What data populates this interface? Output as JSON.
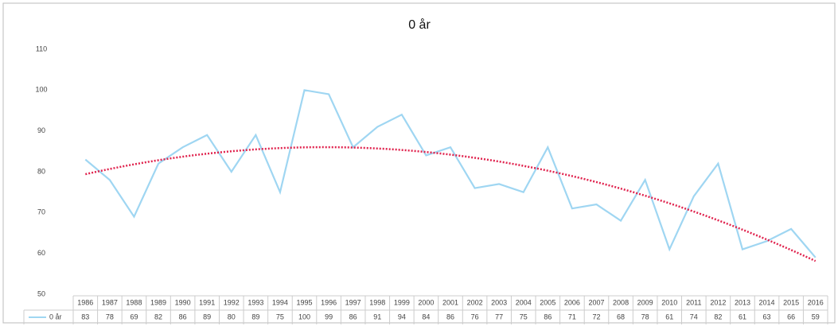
{
  "chart_data": {
    "type": "line",
    "title": "0 år",
    "categories": [
      "1986",
      "1987",
      "1988",
      "1989",
      "1990",
      "1991",
      "1992",
      "1993",
      "1994",
      "1995",
      "1996",
      "1997",
      "1998",
      "1999",
      "2000",
      "2001",
      "2002",
      "2003",
      "2004",
      "2005",
      "2006",
      "2007",
      "2008",
      "2009",
      "2010",
      "2011",
      "2012",
      "2013",
      "2014",
      "2015",
      "2016"
    ],
    "series": [
      {
        "name": "0 år",
        "color": "#9fd6f2",
        "values": [
          83,
          78,
          69,
          82,
          86,
          89,
          80,
          89,
          75,
          100,
          99,
          86,
          91,
          94,
          84,
          86,
          76,
          77,
          75,
          86,
          71,
          72,
          68,
          78,
          61,
          74,
          82,
          61,
          63,
          66,
          59
        ]
      }
    ],
    "trendline": {
      "type": "polynomial",
      "order": 2,
      "color": "#e0234e"
    },
    "ylim": [
      50,
      110
    ],
    "yticks": [
      50,
      60,
      70,
      80,
      90,
      100,
      110
    ],
    "grid": false,
    "data_table": true
  }
}
